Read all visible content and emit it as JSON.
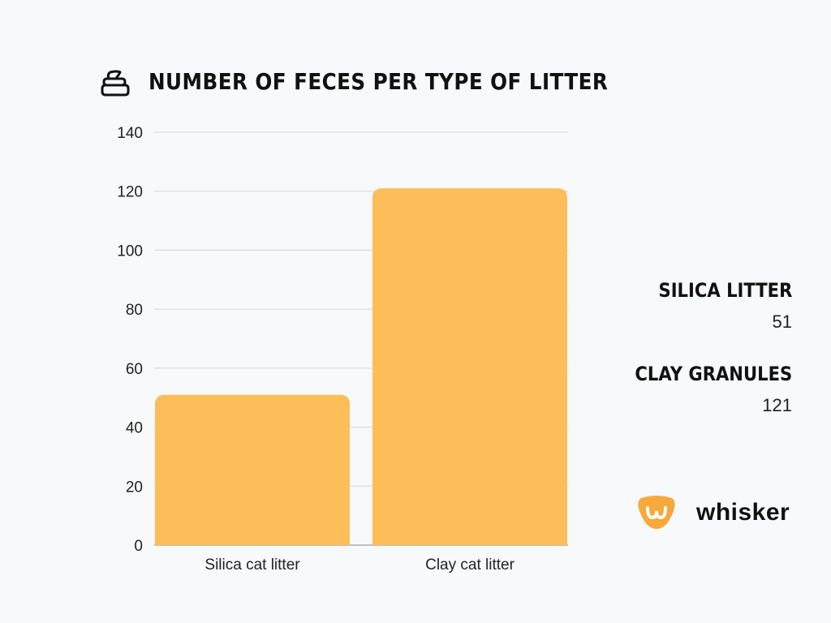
{
  "chart_data": {
    "type": "bar",
    "title": "NUMBER OF FECES PER TYPE OF LITTER",
    "categories": [
      "Silica cat litter",
      "Clay cat litter"
    ],
    "values": [
      51,
      121
    ],
    "ylim": [
      0,
      140
    ],
    "yticks": [
      0,
      20,
      40,
      60,
      80,
      100,
      120,
      140
    ],
    "grid": true,
    "bar_color": "#fdbe5a"
  },
  "legend": [
    {
      "label": "SILICA LITTER",
      "value": "51"
    },
    {
      "label": "CLAY GRANULES",
      "value": "121"
    }
  ],
  "brand": {
    "name": "whisker",
    "color": "#f7a93b"
  },
  "icons": {
    "title_icon": "poop-icon"
  }
}
